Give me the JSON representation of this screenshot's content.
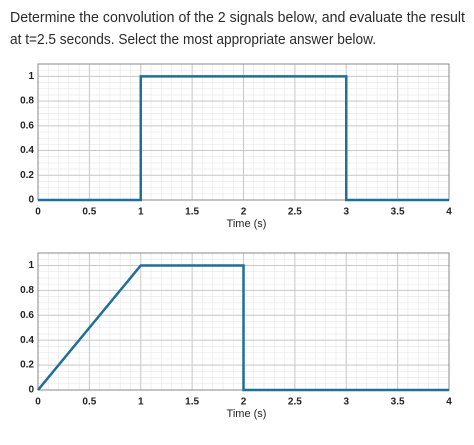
{
  "question": [
    "Determine the convolution of the 2 signals below, and evaluate the result",
    "at t=2.5 seconds. Select the most appropriate answer below."
  ],
  "chart_data": [
    {
      "type": "line",
      "x": [
        0,
        1,
        1,
        3,
        3,
        4
      ],
      "values": [
        0,
        0,
        1,
        1,
        0,
        0
      ],
      "color": "#1f6f97",
      "xlabel": "Time (s)",
      "xlim": [
        0,
        4
      ],
      "ylim": [
        0,
        1.1
      ],
      "xticks": [
        0,
        0.5,
        1,
        1.5,
        2,
        2.5,
        3,
        3.5,
        4
      ],
      "yticks": [
        0,
        0.2,
        0.4,
        0.6,
        0.8,
        1
      ],
      "grid": true
    },
    {
      "type": "line",
      "x": [
        0,
        1,
        2,
        2,
        4
      ],
      "values": [
        0,
        1,
        1,
        0,
        0
      ],
      "color": "#1f6f97",
      "xlabel": "Time (s)",
      "xlim": [
        0,
        4
      ],
      "ylim": [
        0,
        1.1
      ],
      "xticks": [
        0,
        0.5,
        1,
        1.5,
        2,
        2.5,
        3,
        3.5,
        4
      ],
      "yticks": [
        0,
        0.2,
        0.4,
        0.6,
        0.8,
        1
      ],
      "grid": true
    }
  ]
}
